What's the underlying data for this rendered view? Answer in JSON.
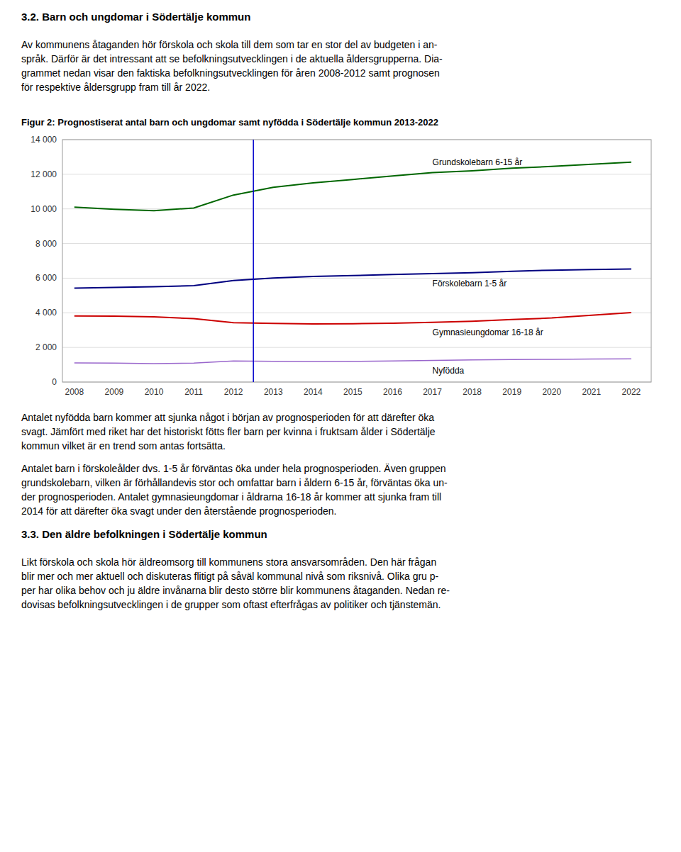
{
  "before_chart": [
    {
      "kind": "heading",
      "text": "3.2. Barn och ungdomar i Södertälje kommun"
    },
    {
      "kind": "paragraph",
      "lines": [
        "Av kommunens åtaganden hör förskola och skola till dem som tar en stor del av budgeten i an-",
        "språk. Därför är det intressant att se befolkningsutvecklingen i de aktuella åldersgrupperna. Dia-",
        "grammet nedan visar den faktiska befolkningsutvecklingen för åren 2008-2012 samt prognosen",
        "för respektive åldersgrupp fram till år 2022."
      ]
    }
  ],
  "chart_data": {
    "type": "line",
    "title": "Figur 2: Prognostiserat antal barn och ungdomar samt nyfödda i Södertälje kommun 2013-2022",
    "x": [
      2008,
      2009,
      2010,
      2011,
      2012,
      2013,
      2014,
      2015,
      2016,
      2017,
      2018,
      2019,
      2020,
      2021,
      2022
    ],
    "series": [
      {
        "name": "Grundskolebarn 6-15 år",
        "color": "#006600",
        "values": [
          10100,
          9980,
          9900,
          10050,
          10800,
          11250,
          11500,
          11700,
          11900,
          12100,
          12200,
          12350,
          12450,
          12580,
          12700
        ]
      },
      {
        "name": "Förskolebarn 1-5 år",
        "color": "#000080",
        "values": [
          5420,
          5460,
          5510,
          5570,
          5860,
          6010,
          6100,
          6150,
          6210,
          6260,
          6310,
          6400,
          6460,
          6500,
          6530
        ]
      },
      {
        "name": "Gymnasieungdomar 16-18 år",
        "color": "#cc0000",
        "values": [
          3820,
          3810,
          3770,
          3660,
          3430,
          3390,
          3360,
          3370,
          3400,
          3450,
          3510,
          3610,
          3700,
          3860,
          4010
        ]
      },
      {
        "name": "Nyfödda",
        "color": "#9966cc",
        "values": [
          1110,
          1090,
          1065,
          1090,
          1220,
          1200,
          1185,
          1195,
          1215,
          1245,
          1275,
          1300,
          1315,
          1330,
          1340
        ]
      }
    ],
    "vline": {
      "x": 2012.5,
      "color": "#0000cc"
    },
    "xlim": [
      2007.7,
      2022.5
    ],
    "xticks": [
      2008,
      2009,
      2010,
      2011,
      2012,
      2013,
      2014,
      2015,
      2016,
      2017,
      2018,
      2019,
      2020,
      2021,
      2022
    ],
    "ylim": [
      0,
      14000
    ],
    "yticks": [
      0,
      {
        "value": 2000,
        "label": "2 000"
      },
      {
        "value": 4000,
        "label": "4 000"
      },
      {
        "value": 6000,
        "label": "6 000"
      },
      {
        "value": 8000,
        "label": "8 000"
      },
      {
        "value": 10000,
        "label": "10 000"
      },
      {
        "value": 12000,
        "label": "12 000"
      },
      {
        "value": 14000,
        "label": "14 000"
      }
    ],
    "grid": true
  },
  "after_chart": [
    {
      "kind": "paragraph",
      "lines": [
        "Antalet nyfödda barn kommer att sjunka något i början av prognosperioden för att därefter öka",
        "svagt. Jämfört med riket har det historiskt fötts fler barn per kvinna i fruktsam ålder i Södertälje",
        "kommun vilket är en trend som antas fortsätta."
      ]
    },
    {
      "kind": "paragraph",
      "lines": [
        "Antalet barn i förskoleålder dvs. 1-5 år förväntas öka under hela prognosperioden. Även gruppen",
        "grundskolebarn, vilken är förhållandevis stor och omfattar barn i åldern 6-15 år, förväntas öka un-",
        "der prognosperioden. Antalet gymnasieungdomar i åldrarna 16-18 år kommer att sjunka fram till",
        "2014 för att därefter öka svagt under den återstående prognosperioden."
      ]
    },
    {
      "kind": "heading",
      "text": "3.3. Den äldre befolkningen i Södertälje kommun"
    },
    {
      "kind": "paragraph",
      "lines": [
        "Likt förskola och skola hör äldreomsorg till kommunens stora ansvarsområden. Den här frågan",
        "blir mer och mer aktuell och diskuteras flitigt på såväl kommunal nivå som riksnivå. Olika gru p-",
        "per har olika behov och ju äldre invånarna blir desto större blir kommunens åtaganden. Nedan re-",
        "dovisas befolkningsutvecklingen i de grupper som oftast efterfrågas av politiker och tjänstemän."
      ]
    }
  ]
}
